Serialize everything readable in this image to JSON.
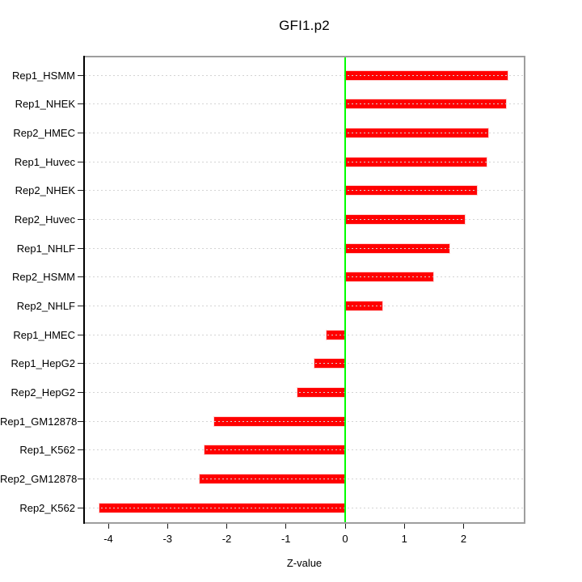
{
  "title": "GFI1.p2",
  "chart_data": {
    "type": "bar",
    "orientation": "horizontal",
    "title": "GFI1.p2",
    "xlabel": "Z-value",
    "ylabel": "",
    "categories": [
      "Rep1_HSMM",
      "Rep1_NHEK",
      "Rep2_HMEC",
      "Rep1_Huvec",
      "Rep2_NHEK",
      "Rep2_Huvec",
      "Rep1_NHLF",
      "Rep2_HSMM",
      "Rep2_NHLF",
      "Rep1_HMEC",
      "Rep1_HepG2",
      "Rep2_HepG2",
      "Rep1_GM12878",
      "Rep1_K562",
      "Rep2_GM12878",
      "Rep2_K562"
    ],
    "values": [
      2.74,
      2.72,
      2.41,
      2.39,
      2.23,
      2.02,
      1.76,
      1.49,
      0.63,
      -0.32,
      -0.52,
      -0.8,
      -2.21,
      -2.38,
      -2.46,
      -4.15
    ],
    "x_ticks": [
      -4,
      -3,
      -2,
      -1,
      0,
      1,
      2
    ],
    "x_tick_labels": [
      "-4",
      "-3",
      "-2",
      "-1",
      "0",
      "1",
      "2"
    ],
    "xlim": [
      -4.4,
      3.02
    ],
    "grid": "dotted horizontal line at each category, drawn over bars",
    "legend": "none",
    "colors": {
      "bar": "#ff0000",
      "zero_line": "#00ff00",
      "gridline": "#d4d4d4",
      "box": "#9e9e9e",
      "axis": "#000000",
      "text": "#000000",
      "background": "#ffffff"
    }
  }
}
